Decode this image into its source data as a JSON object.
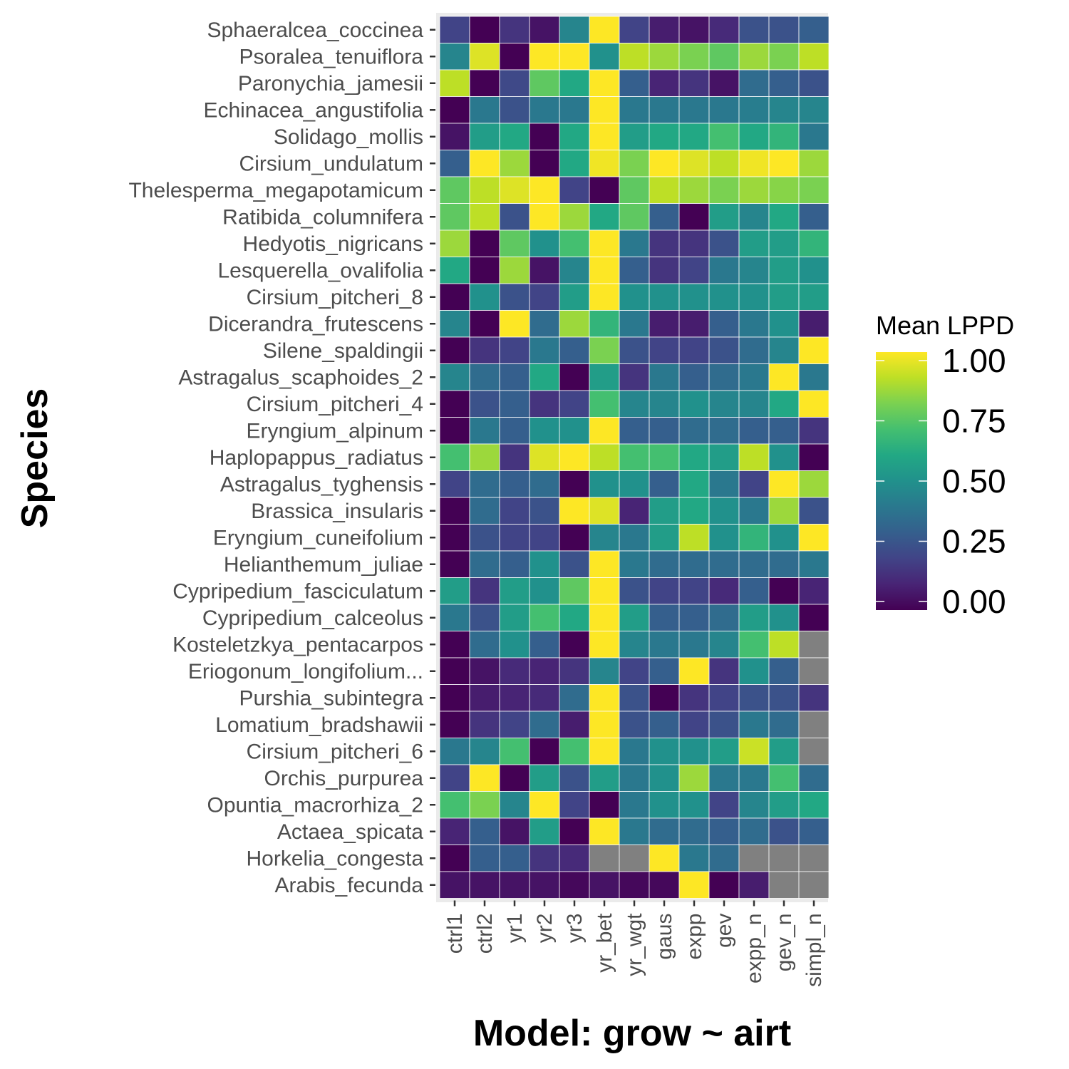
{
  "chart_data": {
    "type": "heatmap",
    "xlabel": "Model: grow ~ airt",
    "ylabel": "Species",
    "legend": {
      "title": "Mean LPPD",
      "position": "right",
      "ticks": [
        "1.00",
        "0.75",
        "0.50",
        "0.25",
        "0.00"
      ],
      "range": [
        0,
        1
      ]
    },
    "colorscale": "viridis",
    "na_color": "#808080",
    "x": [
      "ctrl1",
      "ctrl2",
      "yr1",
      "yr2",
      "yr3",
      "yr_bet",
      "yr_wgt",
      "gaus",
      "expp",
      "gev",
      "expp_n",
      "gev_n",
      "simpl_n"
    ],
    "y": [
      "Sphaeralcea_coccinea",
      "Psoralea_tenuiflora",
      "Paronychia_jamesii",
      "Echinacea_angustifolia",
      "Solidago_mollis",
      "Cirsium_undulatum",
      "Thelesperma_megapotamicum",
      "Ratibida_columnifera",
      "Hedyotis_nigricans",
      "Lesquerella_ovalifolia",
      "Cirsium_pitcheri_8",
      "Dicerandra_frutescens",
      "Silene_spaldingii",
      "Astragalus_scaphoides_2",
      "Cirsium_pitcheri_4",
      "Eryngium_alpinum",
      "Haplopappus_radiatus",
      "Astragalus_tyghensis",
      "Brassica_insularis",
      "Eryngium_cuneifolium",
      "Helianthemum_juliae",
      "Cypripedium_fasciculatum",
      "Cypripedium_calceolus",
      "Kosteletzkya_pentacarpos",
      "Eriogonum_longifolium...",
      "Purshia_subintegra",
      "Lomatium_bradshawii",
      "Cirsium_pitcheri_6",
      "Orchis_purpurea",
      "Opuntia_macrorhiza_2",
      "Actaea_spicata",
      "Horkelia_congesta",
      "Arabis_fecunda"
    ],
    "values": [
      [
        0.2,
        0.0,
        0.15,
        0.05,
        0.45,
        1.0,
        0.2,
        0.08,
        0.05,
        0.12,
        0.25,
        0.25,
        0.3
      ],
      [
        0.45,
        0.95,
        0.0,
        1.0,
        1.0,
        0.5,
        0.9,
        0.85,
        0.8,
        0.75,
        0.85,
        0.8,
        0.9
      ],
      [
        0.9,
        0.0,
        0.22,
        0.75,
        0.6,
        1.0,
        0.3,
        0.1,
        0.15,
        0.05,
        0.35,
        0.3,
        0.25
      ],
      [
        0.0,
        0.4,
        0.25,
        0.4,
        0.4,
        1.0,
        0.4,
        0.4,
        0.4,
        0.4,
        0.42,
        0.45,
        0.45
      ],
      [
        0.05,
        0.55,
        0.6,
        0.0,
        0.6,
        1.0,
        0.55,
        0.6,
        0.6,
        0.7,
        0.6,
        0.65,
        0.4
      ],
      [
        0.3,
        1.0,
        0.85,
        0.0,
        0.6,
        0.98,
        0.8,
        1.0,
        0.95,
        0.9,
        0.98,
        1.0,
        0.85
      ],
      [
        0.75,
        0.9,
        0.95,
        1.0,
        0.2,
        0.0,
        0.75,
        0.9,
        0.85,
        0.8,
        0.85,
        0.82,
        0.8
      ],
      [
        0.75,
        0.9,
        0.25,
        1.0,
        0.85,
        0.6,
        0.75,
        0.3,
        0.0,
        0.55,
        0.45,
        0.6,
        0.3
      ],
      [
        0.85,
        0.0,
        0.75,
        0.5,
        0.7,
        1.0,
        0.4,
        0.15,
        0.15,
        0.25,
        0.55,
        0.55,
        0.65
      ],
      [
        0.6,
        0.0,
        0.85,
        0.05,
        0.45,
        1.0,
        0.3,
        0.15,
        0.2,
        0.4,
        0.45,
        0.55,
        0.5
      ],
      [
        0.0,
        0.5,
        0.25,
        0.2,
        0.55,
        1.0,
        0.5,
        0.5,
        0.5,
        0.5,
        0.5,
        0.55,
        0.55
      ],
      [
        0.45,
        0.0,
        1.0,
        0.35,
        0.85,
        0.65,
        0.4,
        0.08,
        0.08,
        0.3,
        0.4,
        0.5,
        0.08
      ],
      [
        0.0,
        0.15,
        0.2,
        0.4,
        0.3,
        0.8,
        0.25,
        0.2,
        0.2,
        0.25,
        0.35,
        0.45,
        1.0
      ],
      [
        0.45,
        0.35,
        0.3,
        0.6,
        0.0,
        0.55,
        0.15,
        0.4,
        0.3,
        0.35,
        0.4,
        1.0,
        0.4
      ],
      [
        0.0,
        0.25,
        0.3,
        0.15,
        0.2,
        0.7,
        0.45,
        0.45,
        0.5,
        0.45,
        0.45,
        0.6,
        1.0
      ],
      [
        0.0,
        0.4,
        0.3,
        0.5,
        0.5,
        1.0,
        0.3,
        0.3,
        0.35,
        0.35,
        0.3,
        0.3,
        0.15
      ],
      [
        0.7,
        0.85,
        0.15,
        0.95,
        1.0,
        0.9,
        0.7,
        0.7,
        0.6,
        0.55,
        0.9,
        0.5,
        0.0
      ],
      [
        0.2,
        0.35,
        0.3,
        0.35,
        0.0,
        0.5,
        0.5,
        0.3,
        0.6,
        0.4,
        0.2,
        1.0,
        0.85
      ],
      [
        0.0,
        0.35,
        0.2,
        0.25,
        1.0,
        0.95,
        0.1,
        0.55,
        0.6,
        0.5,
        0.4,
        0.85,
        0.25
      ],
      [
        0.0,
        0.25,
        0.2,
        0.2,
        0.0,
        0.45,
        0.4,
        0.55,
        0.9,
        0.5,
        0.65,
        0.5,
        1.0
      ],
      [
        0.0,
        0.35,
        0.3,
        0.5,
        0.25,
        1.0,
        0.4,
        0.35,
        0.35,
        0.35,
        0.35,
        0.35,
        0.4
      ],
      [
        0.55,
        0.15,
        0.55,
        0.5,
        0.75,
        1.0,
        0.25,
        0.2,
        0.2,
        0.12,
        0.3,
        0.0,
        0.1
      ],
      [
        0.4,
        0.25,
        0.55,
        0.7,
        0.6,
        1.0,
        0.55,
        0.3,
        0.3,
        0.35,
        0.55,
        0.5,
        0.0
      ],
      [
        0.0,
        0.35,
        0.5,
        0.3,
        0.0,
        1.0,
        0.45,
        0.4,
        0.4,
        0.45,
        0.7,
        0.9,
        null
      ],
      [
        0.0,
        0.05,
        0.12,
        0.1,
        0.15,
        0.45,
        0.2,
        0.3,
        1.0,
        0.15,
        0.5,
        0.3,
        null
      ],
      [
        0.0,
        0.08,
        0.1,
        0.12,
        0.35,
        1.0,
        0.25,
        0.0,
        0.15,
        0.2,
        0.25,
        0.25,
        0.15
      ],
      [
        0.0,
        0.15,
        0.2,
        0.35,
        0.08,
        1.0,
        0.25,
        0.3,
        0.2,
        0.25,
        0.4,
        0.35,
        null
      ],
      [
        0.4,
        0.45,
        0.7,
        0.0,
        0.7,
        1.0,
        0.4,
        0.5,
        0.5,
        0.55,
        0.92,
        0.55,
        null
      ],
      [
        0.2,
        1.0,
        0.0,
        0.55,
        0.25,
        0.55,
        0.4,
        0.5,
        0.85,
        0.4,
        0.4,
        0.7,
        0.35
      ],
      [
        0.7,
        0.8,
        0.45,
        1.0,
        0.2,
        0.0,
        0.4,
        0.5,
        0.5,
        0.2,
        0.45,
        0.55,
        0.6
      ],
      [
        0.1,
        0.3,
        0.05,
        0.55,
        0.0,
        1.0,
        0.4,
        0.35,
        0.35,
        0.3,
        0.35,
        0.25,
        0.3
      ],
      [
        0.0,
        0.3,
        0.3,
        0.15,
        0.12,
        null,
        null,
        1.0,
        0.4,
        0.35,
        null,
        null,
        null
      ],
      [
        0.05,
        0.05,
        0.05,
        0.05,
        0.02,
        0.05,
        0.02,
        0.02,
        1.0,
        0.0,
        0.08,
        null,
        null
      ]
    ]
  }
}
